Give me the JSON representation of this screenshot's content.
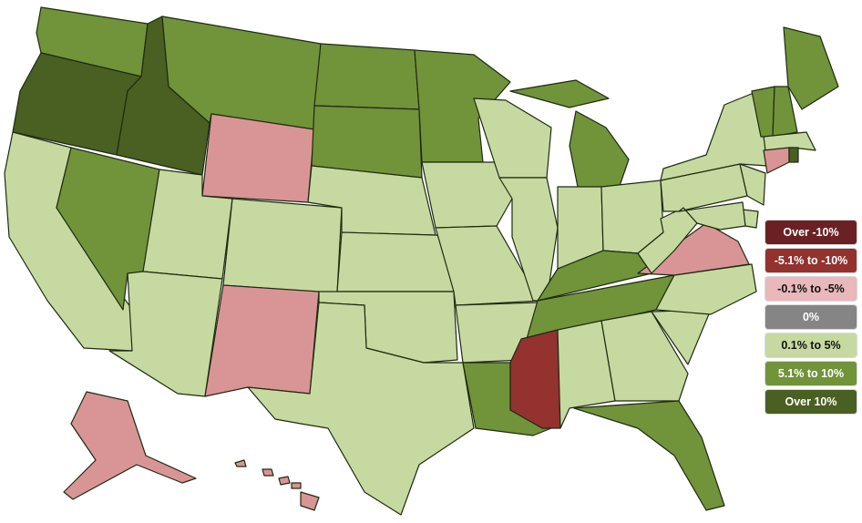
{
  "legend": {
    "items": [
      {
        "key": "over_neg10",
        "label": "Over -10%",
        "color": "#6b2124",
        "text_color": "#ffffff"
      },
      {
        "key": "neg5_neg10",
        "label": "-5.1% to -10%",
        "color": "#93322f",
        "text_color": "#ffffff"
      },
      {
        "key": "neg0_neg5",
        "label": "-0.1% to -5%",
        "color": "#e8b8ba",
        "text_color": "#111111"
      },
      {
        "key": "zero",
        "label": "0%",
        "color": "#858585",
        "text_color": "#ffffff"
      },
      {
        "key": "pos0_5",
        "label": "0.1% to 5%",
        "color": "#c6d9a0",
        "text_color": "#111111"
      },
      {
        "key": "pos5_10",
        "label": "5.1% to 10%",
        "color": "#71933a",
        "text_color": "#ffffff"
      },
      {
        "key": "over10",
        "label": "Over 10%",
        "color": "#4a5f22",
        "text_color": "#ffffff"
      }
    ]
  },
  "map_data": {
    "colors": {
      "over10": "#4a5f22",
      "pos5_10": "#71933a",
      "pos0_5": "#c6d9a0",
      "neg0_neg5": "#d99595",
      "neg5_neg10": "#93322f",
      "over_neg10": "#6b2124"
    },
    "states": [
      {
        "state": "OR",
        "category": "over10"
      },
      {
        "state": "ID",
        "category": "over10"
      },
      {
        "state": "RI",
        "category": "over10"
      },
      {
        "state": "WA",
        "category": "pos5_10"
      },
      {
        "state": "MT",
        "category": "pos5_10"
      },
      {
        "state": "ND",
        "category": "pos5_10"
      },
      {
        "state": "SD",
        "category": "pos5_10"
      },
      {
        "state": "MN",
        "category": "pos5_10"
      },
      {
        "state": "NV",
        "category": "pos5_10"
      },
      {
        "state": "MI",
        "category": "pos5_10"
      },
      {
        "state": "KY",
        "category": "pos5_10"
      },
      {
        "state": "TN",
        "category": "pos5_10"
      },
      {
        "state": "LA",
        "category": "pos5_10"
      },
      {
        "state": "FL",
        "category": "pos5_10"
      },
      {
        "state": "ME",
        "category": "pos5_10"
      },
      {
        "state": "VT",
        "category": "pos5_10"
      },
      {
        "state": "NH",
        "category": "pos5_10"
      },
      {
        "state": "WY",
        "category": "neg0_neg5"
      },
      {
        "state": "NM",
        "category": "neg0_neg5"
      },
      {
        "state": "VA",
        "category": "neg0_neg5"
      },
      {
        "state": "CT",
        "category": "neg0_neg5"
      },
      {
        "state": "AK",
        "category": "neg0_neg5"
      },
      {
        "state": "HI",
        "category": "neg0_neg5"
      },
      {
        "state": "MS",
        "category": "neg5_neg10"
      },
      {
        "state": "CA",
        "category": "pos0_5"
      },
      {
        "state": "UT",
        "category": "pos0_5"
      },
      {
        "state": "AZ",
        "category": "pos0_5"
      },
      {
        "state": "CO",
        "category": "pos0_5"
      },
      {
        "state": "NE",
        "category": "pos0_5"
      },
      {
        "state": "KS",
        "category": "pos0_5"
      },
      {
        "state": "OK",
        "category": "pos0_5"
      },
      {
        "state": "TX",
        "category": "pos0_5"
      },
      {
        "state": "IA",
        "category": "pos0_5"
      },
      {
        "state": "MO",
        "category": "pos0_5"
      },
      {
        "state": "AR",
        "category": "pos0_5"
      },
      {
        "state": "WI",
        "category": "pos0_5"
      },
      {
        "state": "IL",
        "category": "pos0_5"
      },
      {
        "state": "IN",
        "category": "pos0_5"
      },
      {
        "state": "OH",
        "category": "pos0_5"
      },
      {
        "state": "AL",
        "category": "pos0_5"
      },
      {
        "state": "GA",
        "category": "pos0_5"
      },
      {
        "state": "SC",
        "category": "pos0_5"
      },
      {
        "state": "NC",
        "category": "pos0_5"
      },
      {
        "state": "WV",
        "category": "pos0_5"
      },
      {
        "state": "PA",
        "category": "pos0_5"
      },
      {
        "state": "NY",
        "category": "pos0_5"
      },
      {
        "state": "NJ",
        "category": "pos0_5"
      },
      {
        "state": "DE",
        "category": "pos0_5"
      },
      {
        "state": "MD",
        "category": "pos0_5"
      },
      {
        "state": "MA",
        "category": "pos0_5"
      }
    ]
  }
}
